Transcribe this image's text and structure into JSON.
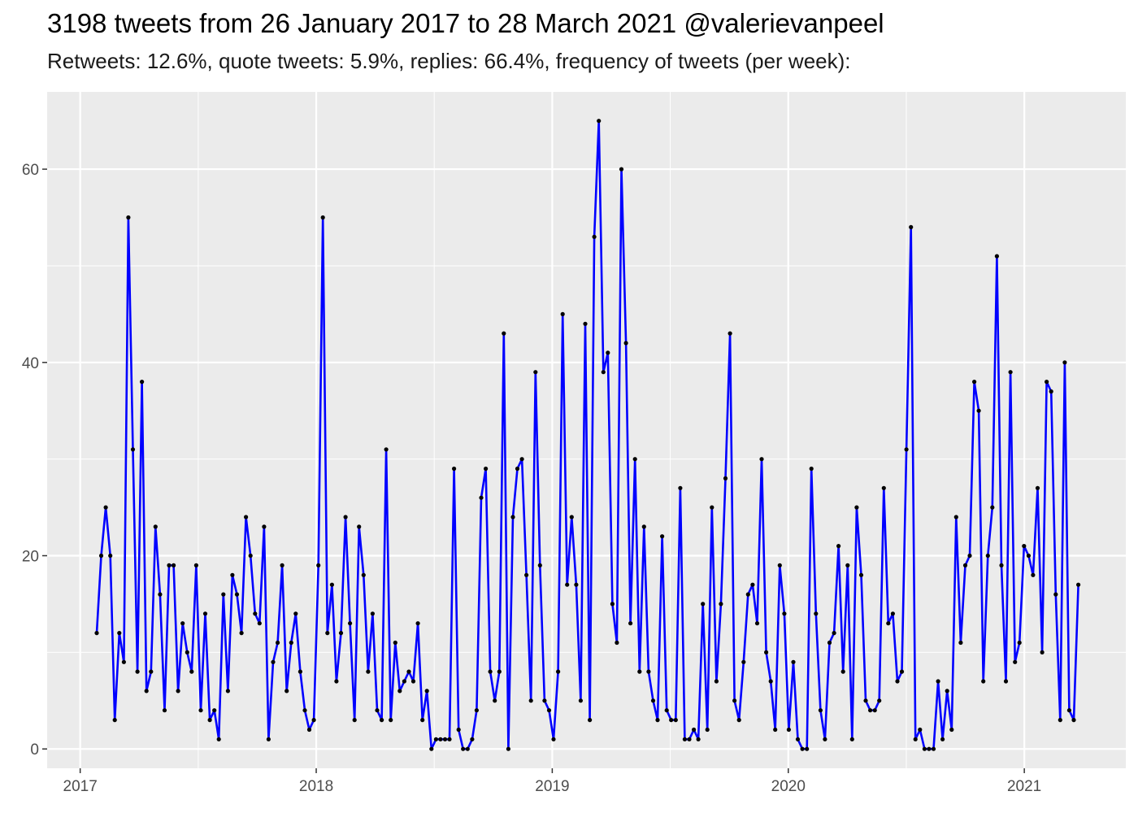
{
  "chart_data": {
    "type": "line",
    "title": "3198 tweets from 26 January 2017 to 28 March 2021 @valerievanpeel",
    "subtitle": "Retweets: 12.6%, quote tweets: 5.9%, replies: 66.4%, frequency of tweets (per week):",
    "xlabel": "",
    "ylabel": "",
    "x_ticks": [
      "2017",
      "2018",
      "2019",
      "2020",
      "2021"
    ],
    "y_ticks": [
      0,
      20,
      40,
      60
    ],
    "ylim": [
      -2,
      68
    ],
    "xlim": [
      2016.86,
      2021.43
    ],
    "grid": true,
    "x_axis": "decimal year (week bins)",
    "x_start": 2017.07,
    "x_step_weeks": 1,
    "values": [
      12,
      20,
      25,
      20,
      3,
      12,
      9,
      55,
      31,
      8,
      38,
      6,
      8,
      23,
      16,
      4,
      19,
      19,
      6,
      13,
      10,
      8,
      19,
      4,
      14,
      3,
      4,
      1,
      16,
      6,
      18,
      16,
      12,
      24,
      20,
      14,
      13,
      23,
      1,
      9,
      11,
      19,
      6,
      11,
      14,
      8,
      4,
      2,
      3,
      19,
      55,
      12,
      17,
      7,
      12,
      24,
      13,
      3,
      23,
      18,
      8,
      14,
      4,
      3,
      31,
      3,
      11,
      6,
      7,
      8,
      7,
      13,
      3,
      6,
      0,
      1,
      1,
      1,
      1,
      29,
      2,
      0,
      0,
      1,
      4,
      26,
      29,
      8,
      5,
      8,
      43,
      0,
      24,
      29,
      30,
      18,
      5,
      39,
      19,
      5,
      4,
      1,
      8,
      45,
      17,
      24,
      17,
      5,
      44,
      3,
      53,
      65,
      39,
      41,
      15,
      11,
      60,
      42,
      13,
      30,
      8,
      23,
      8,
      5,
      3,
      22,
      4,
      3,
      3,
      27,
      1,
      1,
      2,
      1,
      15,
      2,
      25,
      7,
      15,
      28,
      43,
      5,
      3,
      9,
      16,
      17,
      13,
      30,
      10,
      7,
      2,
      19,
      14,
      2,
      9,
      1,
      0,
      0,
      29,
      14,
      4,
      1,
      11,
      12,
      21,
      8,
      19,
      1,
      25,
      18,
      5,
      4,
      4,
      5,
      27,
      13,
      14,
      7,
      8,
      31,
      54,
      1,
      2,
      0,
      0,
      0,
      7,
      1,
      6,
      2,
      24,
      11,
      19,
      20,
      38,
      35,
      7,
      20,
      25,
      51,
      19,
      7,
      39,
      9,
      11,
      21,
      20,
      18,
      27,
      10,
      38,
      37,
      16,
      3,
      40,
      4,
      3,
      17
    ],
    "line_color": "#0000ff",
    "point_color": "#000000",
    "panel_background": "#ebebeb",
    "grid_color": "#ffffff"
  }
}
